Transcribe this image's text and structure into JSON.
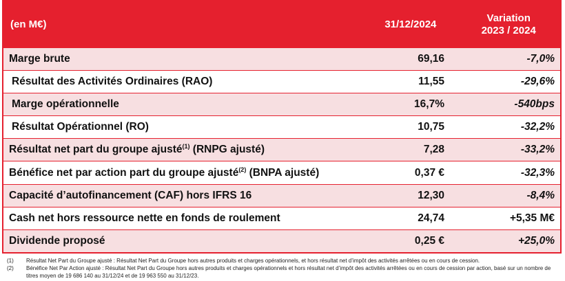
{
  "header": {
    "unit": "(en M€)",
    "date": "31/12/2024",
    "variation_line1": "Variation",
    "variation_line2": "2023 / 2024"
  },
  "rows": [
    {
      "label": "Marge brute",
      "sup": "",
      "label_after": "",
      "value": "69,16",
      "variation": "-7,0%"
    },
    {
      "label": "Résultat des Activités Ordinaires (RAO)",
      "sup": "",
      "label_after": "",
      "value": "11,55",
      "variation": "-29,6%"
    },
    {
      "label": "Marge opérationnelle",
      "sup": "",
      "label_after": "",
      "value": "16,7%",
      "variation": "-540bps"
    },
    {
      "label": "Résultat Opérationnel (RO)",
      "sup": "",
      "label_after": "",
      "value": "10,75",
      "variation": "-32,2%"
    },
    {
      "label": "Résultat net part du groupe ajusté",
      "sup": "(1)",
      "label_after": " (RNPG ajusté)",
      "value": "7,28",
      "variation": "-33,2%"
    },
    {
      "label": "Bénéfice net par action part du groupe ajusté",
      "sup": "(2)",
      "label_after": " (BNPA ajusté)",
      "value": "0,37 €",
      "variation": "-32,3%"
    },
    {
      "label": "Capacité d’autofinancement (CAF) hors IFRS 16",
      "sup": "",
      "label_after": "",
      "value": "12,30",
      "variation": "-8,4%"
    },
    {
      "label": "Cash net hors ressource nette en fonds de roulement",
      "sup": "",
      "label_after": "",
      "value": "24,74",
      "variation": "+5,35 M€"
    },
    {
      "label": "Dividende proposé",
      "sup": "",
      "label_after": "",
      "value": "0,25 €",
      "variation": "+25,0%"
    }
  ],
  "notes": [
    {
      "num": "(1)",
      "text": "Résultat Net Part du Groupe ajusté : Résultat Net Part du Groupe hors autres produits et charges opérationnels, et hors résultat net d’impôt des activités arrêtées ou en cours de cession."
    },
    {
      "num": "(2)",
      "text": "Bénéfice Net Par Action ajusté : Résultat Net Part du Groupe hors autres produits et charges opérationnels et hors résultat net d’impôt des activités arrêtées ou en cours de cession par action, basé sur un nombre de titres moyen de 19 686 140 au 31/12/24 et de 19 963 550 au 31/12/23."
    }
  ],
  "colors": {
    "accent": "#e5202e",
    "shade": "#f7dfe1"
  }
}
